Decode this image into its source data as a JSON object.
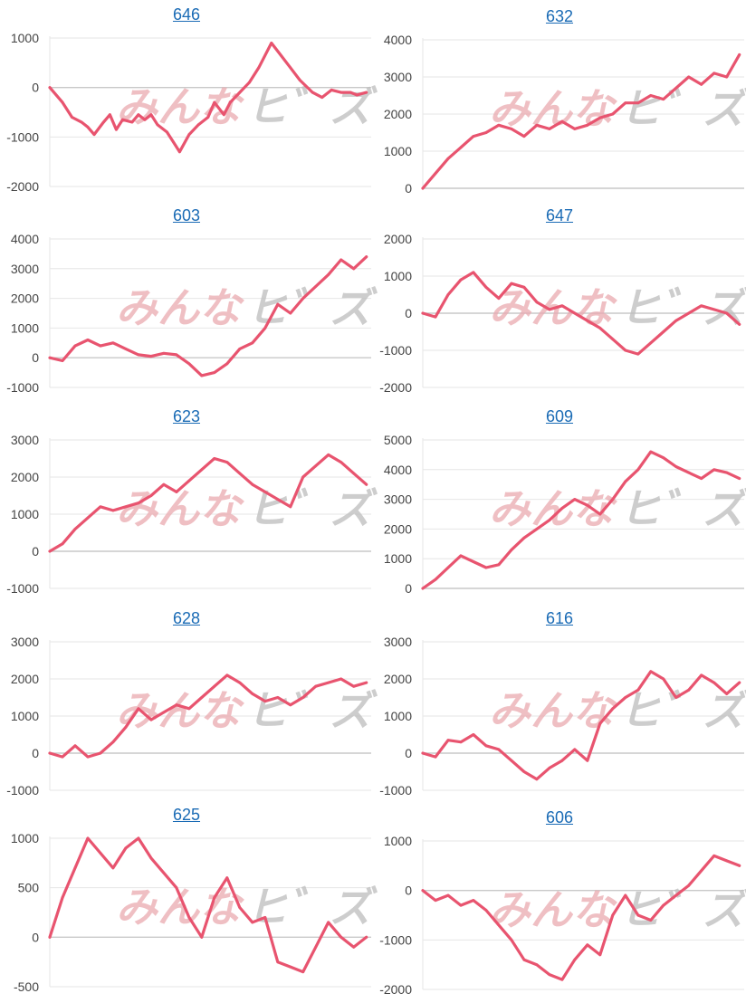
{
  "colors": {
    "line": "#e8546f",
    "grid": "#e6e6e6",
    "axis": "#c9c9c9",
    "title": "#1a6bb5",
    "tick": "#444444",
    "wm_a": "#eaaab0",
    "wm_b": "#bdbdbd"
  },
  "watermark": {
    "part1": "みんな",
    "part2": "ヒ゛ズ"
  },
  "chart_data": [
    {
      "type": "line",
      "title": "646",
      "ylim": [
        -2000,
        1000
      ],
      "yticks": [
        1000,
        0,
        -1000,
        -2000
      ],
      "grid": true,
      "x": [
        0,
        4,
        7,
        10,
        12,
        14,
        17,
        19,
        21,
        23,
        26,
        28,
        30,
        32,
        34,
        37,
        39,
        41,
        44,
        47,
        50,
        52,
        55,
        57,
        60,
        63,
        66,
        70,
        73,
        76,
        79,
        83,
        86,
        89,
        92,
        95,
        97,
        100
      ],
      "y": [
        0,
        -300,
        -600,
        -700,
        -800,
        -950,
        -700,
        -550,
        -850,
        -650,
        -700,
        -550,
        -650,
        -550,
        -750,
        -900,
        -1100,
        -1300,
        -950,
        -750,
        -600,
        -300,
        -550,
        -300,
        -100,
        100,
        400,
        900,
        650,
        400,
        150,
        -100,
        -200,
        -50,
        -100,
        -100,
        -150,
        -100
      ]
    },
    {
      "type": "line",
      "title": "632",
      "ylim": [
        0,
        4000
      ],
      "yticks": [
        4000,
        3000,
        2000,
        1000,
        0
      ],
      "grid": true,
      "x": [
        0,
        4,
        8,
        12,
        16,
        20,
        24,
        28,
        32,
        36,
        40,
        44,
        48,
        52,
        56,
        60,
        64,
        68,
        72,
        76,
        80,
        84,
        88,
        92,
        96,
        100
      ],
      "y": [
        0,
        400,
        800,
        1100,
        1400,
        1500,
        1700,
        1600,
        1400,
        1700,
        1600,
        1800,
        1600,
        1700,
        1900,
        2000,
        2300,
        2300,
        2500,
        2400,
        2700,
        3000,
        2800,
        3100,
        3000,
        3600
      ]
    },
    {
      "type": "line",
      "title": "603",
      "ylim": [
        -1000,
        4000
      ],
      "yticks": [
        4000,
        3000,
        2000,
        1000,
        0,
        -1000
      ],
      "grid": true,
      "x": [
        0,
        4,
        8,
        12,
        16,
        20,
        24,
        28,
        32,
        36,
        40,
        44,
        48,
        52,
        56,
        60,
        64,
        68,
        72,
        76,
        80,
        84,
        88,
        92,
        96,
        100
      ],
      "y": [
        0,
        -100,
        400,
        600,
        400,
        500,
        300,
        100,
        50,
        150,
        100,
        -200,
        -600,
        -500,
        -200,
        300,
        500,
        1000,
        1800,
        1500,
        2000,
        2400,
        2800,
        3300,
        3000,
        3400
      ]
    },
    {
      "type": "line",
      "title": "647",
      "ylim": [
        -2000,
        2000
      ],
      "yticks": [
        2000,
        1000,
        0,
        -1000,
        -2000
      ],
      "grid": true,
      "x": [
        0,
        4,
        8,
        12,
        16,
        20,
        24,
        28,
        32,
        36,
        40,
        44,
        48,
        52,
        56,
        60,
        64,
        68,
        72,
        76,
        80,
        84,
        88,
        92,
        96,
        100
      ],
      "y": [
        0,
        -100,
        500,
        900,
        1100,
        700,
        400,
        800,
        700,
        300,
        100,
        200,
        0,
        -200,
        -400,
        -700,
        -1000,
        -1100,
        -800,
        -500,
        -200,
        0,
        200,
        100,
        0,
        -300
      ]
    },
    {
      "type": "line",
      "title": "623",
      "ylim": [
        -1000,
        3000
      ],
      "yticks": [
        3000,
        2000,
        1000,
        0,
        -1000
      ],
      "grid": true,
      "x": [
        0,
        4,
        8,
        12,
        16,
        20,
        24,
        28,
        32,
        36,
        40,
        44,
        48,
        52,
        56,
        60,
        64,
        68,
        72,
        76,
        80,
        84,
        88,
        92,
        96,
        100
      ],
      "y": [
        0,
        200,
        600,
        900,
        1200,
        1100,
        1200,
        1300,
        1500,
        1800,
        1600,
        1900,
        2200,
        2500,
        2400,
        2100,
        1800,
        1600,
        1400,
        1200,
        2000,
        2300,
        2600,
        2400,
        2100,
        1800
      ]
    },
    {
      "type": "line",
      "title": "609",
      "ylim": [
        0,
        5000
      ],
      "yticks": [
        5000,
        4000,
        3000,
        2000,
        1000,
        0
      ],
      "grid": true,
      "x": [
        0,
        4,
        8,
        12,
        16,
        20,
        24,
        28,
        32,
        36,
        40,
        44,
        48,
        52,
        56,
        60,
        64,
        68,
        72,
        76,
        80,
        84,
        88,
        92,
        96,
        100
      ],
      "y": [
        0,
        300,
        700,
        1100,
        900,
        700,
        800,
        1300,
        1700,
        2000,
        2300,
        2700,
        3000,
        2800,
        2500,
        3000,
        3600,
        4000,
        4600,
        4400,
        4100,
        3900,
        3700,
        4000,
        3900,
        3700
      ]
    },
    {
      "type": "line",
      "title": "628",
      "ylim": [
        -1000,
        3000
      ],
      "yticks": [
        3000,
        2000,
        1000,
        0,
        -1000
      ],
      "grid": true,
      "x": [
        0,
        4,
        8,
        12,
        16,
        20,
        24,
        28,
        32,
        36,
        40,
        44,
        48,
        52,
        56,
        60,
        64,
        68,
        72,
        76,
        80,
        84,
        88,
        92,
        96,
        100
      ],
      "y": [
        0,
        -100,
        200,
        -100,
        0,
        300,
        700,
        1200,
        900,
        1100,
        1300,
        1200,
        1500,
        1800,
        2100,
        1900,
        1600,
        1400,
        1500,
        1300,
        1500,
        1800,
        1900,
        2000,
        1800,
        1900
      ]
    },
    {
      "type": "line",
      "title": "616",
      "ylim": [
        -1000,
        3000
      ],
      "yticks": [
        3000,
        2000,
        1000,
        0,
        -1000
      ],
      "grid": true,
      "x": [
        0,
        4,
        8,
        12,
        16,
        20,
        24,
        28,
        32,
        36,
        40,
        44,
        48,
        52,
        56,
        60,
        64,
        68,
        72,
        76,
        80,
        84,
        88,
        92,
        96,
        100
      ],
      "y": [
        0,
        -100,
        350,
        300,
        500,
        200,
        100,
        -200,
        -500,
        -700,
        -400,
        -200,
        100,
        -200,
        800,
        1200,
        1500,
        1700,
        2200,
        2000,
        1500,
        1700,
        2100,
        1900,
        1600,
        1900
      ]
    },
    {
      "type": "line",
      "title": "625",
      "ylim": [
        -500,
        1000
      ],
      "yticks": [
        1000,
        500,
        0,
        -500
      ],
      "grid": true,
      "x": [
        0,
        4,
        8,
        12,
        16,
        20,
        24,
        28,
        32,
        36,
        40,
        44,
        48,
        52,
        56,
        60,
        64,
        68,
        72,
        76,
        80,
        84,
        88,
        92,
        96,
        100
      ],
      "y": [
        0,
        400,
        700,
        1000,
        850,
        700,
        900,
        1000,
        800,
        650,
        500,
        200,
        0,
        400,
        600,
        300,
        150,
        200,
        -250,
        -300,
        -350,
        -100,
        150,
        0,
        -100,
        0
      ]
    },
    {
      "type": "line",
      "title": "606",
      "ylim": [
        -2000,
        1000
      ],
      "yticks": [
        1000,
        0,
        -1000,
        -2000
      ],
      "grid": true,
      "x": [
        0,
        4,
        8,
        12,
        16,
        20,
        24,
        28,
        32,
        36,
        40,
        44,
        48,
        52,
        56,
        60,
        64,
        68,
        72,
        76,
        80,
        84,
        88,
        92,
        96,
        100
      ],
      "y": [
        0,
        -200,
        -100,
        -300,
        -200,
        -400,
        -700,
        -1000,
        -1400,
        -1500,
        -1700,
        -1800,
        -1400,
        -1100,
        -1300,
        -500,
        -100,
        -500,
        -600,
        -300,
        -100,
        100,
        400,
        700,
        600,
        500
      ]
    }
  ]
}
